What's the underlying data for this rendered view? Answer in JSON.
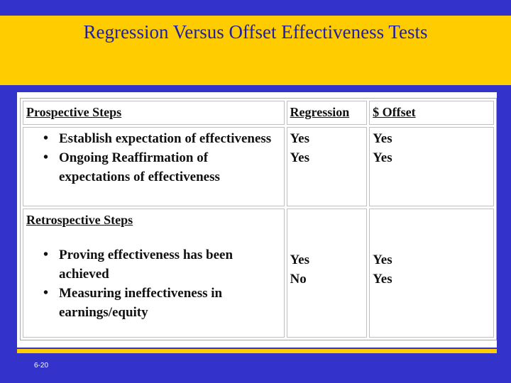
{
  "slide": {
    "title": "Regression Versus Offset Effectiveness Tests",
    "number": "6-20"
  },
  "table": {
    "headers": {
      "steps": "Prospective Steps",
      "regression": "Regression",
      "offset": "$ Offset"
    },
    "prospective": {
      "items": [
        "Establish expectation of effectiveness",
        "Ongoing Reaffirmation of expectations of effectiveness"
      ],
      "regression": [
        "Yes",
        "Yes"
      ],
      "offset": [
        "Yes",
        "Yes"
      ]
    },
    "retrospective": {
      "heading": "Retrospective Steps",
      "items": [
        "Proving effectiveness has been achieved",
        "Measuring ineffectiveness in earnings/equity"
      ],
      "regression": [
        "Yes",
        "No"
      ],
      "offset": [
        "Yes",
        "Yes"
      ]
    }
  }
}
